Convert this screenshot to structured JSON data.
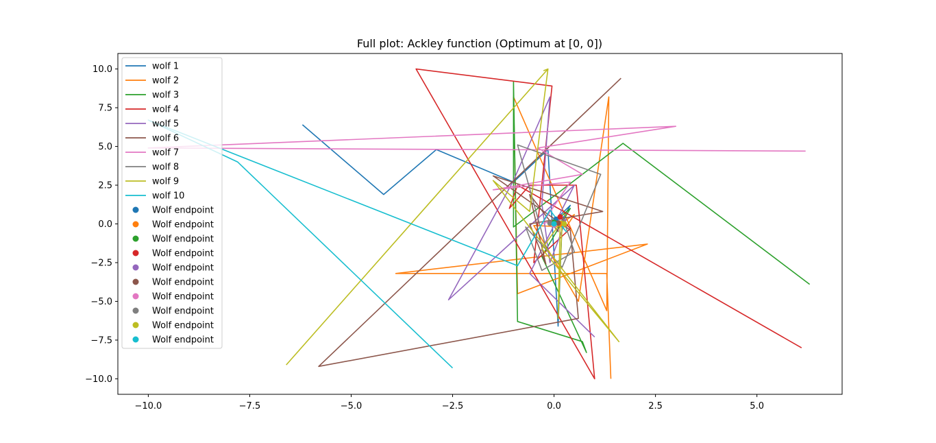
{
  "chart_data": {
    "type": "line",
    "title": "Full plot: Ackley function (Optimum at [0, 0])",
    "xlabel": "",
    "ylabel": "",
    "xlim": [
      -10.75,
      7.1
    ],
    "ylim": [
      -11.0,
      11.0
    ],
    "xticks": [
      -10.0,
      -7.5,
      -5.0,
      -2.5,
      0.0,
      2.5,
      5.0
    ],
    "xtick_labels": [
      "−10.0",
      "−7.5",
      "−5.0",
      "−2.5",
      "0.0",
      "2.5",
      "5.0"
    ],
    "yticks": [
      10.0,
      7.5,
      5.0,
      2.5,
      0.0,
      -2.5,
      -5.0,
      -7.5,
      -10.0
    ],
    "ytick_labels": [
      "10.0",
      "7.5",
      "5.0",
      "2.5",
      "0.0",
      "−2.5",
      "−5.0",
      "−7.5",
      "−10.0"
    ],
    "grid": false,
    "legend_position": "top-left",
    "series": [
      {
        "name": "wolf 1",
        "color": "#1f77b4",
        "points": [
          [
            -6.2,
            6.4
          ],
          [
            -4.2,
            1.9
          ],
          [
            -2.9,
            4.8
          ],
          [
            -1.0,
            2.7
          ],
          [
            -0.15,
            4.8
          ],
          [
            0.1,
            -6.6
          ],
          [
            0.2,
            0.2
          ],
          [
            0.1,
            -0.2
          ],
          [
            0.4,
            1.2
          ],
          [
            0.05,
            0.3
          ]
        ]
      },
      {
        "name": "wolf 2",
        "color": "#ff7f0e",
        "points": [
          [
            1.4,
            -10.0
          ],
          [
            1.3,
            -3.2
          ],
          [
            -3.9,
            -3.2
          ],
          [
            2.3,
            -1.3
          ],
          [
            -0.9,
            -4.5
          ],
          [
            -1.0,
            8.2
          ],
          [
            1.3,
            -5.6
          ],
          [
            1.35,
            8.2
          ],
          [
            0.6,
            -5.0
          ],
          [
            -0.5,
            -0.1
          ],
          [
            0.3,
            -0.2
          ],
          [
            0.5,
            0.6
          ],
          [
            0.15,
            0.0
          ]
        ]
      },
      {
        "name": "wolf 3",
        "color": "#2ca02c",
        "points": [
          [
            6.3,
            -3.9
          ],
          [
            1.7,
            5.2
          ],
          [
            -1.0,
            -0.2
          ],
          [
            -1.0,
            9.2
          ],
          [
            -0.9,
            -6.3
          ],
          [
            0.7,
            -7.6
          ],
          [
            0.8,
            -8.3
          ],
          [
            -0.3,
            -2.1
          ],
          [
            0.4,
            1.0
          ],
          [
            0.0,
            0.1
          ]
        ]
      },
      {
        "name": "wolf 4",
        "color": "#d62728",
        "points": [
          [
            6.1,
            -8.0
          ],
          [
            -0.9,
            2.5
          ],
          [
            -1.1,
            1.0
          ],
          [
            -0.6,
            2.5
          ],
          [
            0.55,
            2.5
          ],
          [
            1.0,
            -10.0
          ],
          [
            -3.4,
            10.0
          ],
          [
            -0.05,
            8.9
          ],
          [
            -0.5,
            -2.5
          ],
          [
            0.4,
            -0.3
          ],
          [
            0.15,
            0.45
          ]
        ]
      },
      {
        "name": "wolf 5",
        "color": "#9467bd",
        "points": [
          [
            1.0,
            -7.3
          ],
          [
            -0.6,
            -3.2
          ],
          [
            0.5,
            2.5
          ],
          [
            -2.6,
            -4.9
          ],
          [
            -1.0,
            2.8
          ],
          [
            -0.1,
            8.2
          ],
          [
            -0.3,
            1.3
          ],
          [
            -0.1,
            -2.5
          ],
          [
            0.3,
            0.3
          ],
          [
            0.0,
            0.0
          ]
        ]
      },
      {
        "name": "wolf 6",
        "color": "#8c564b",
        "points": [
          [
            1.65,
            9.4
          ],
          [
            -5.8,
            -9.2
          ],
          [
            0.6,
            -6.1
          ],
          [
            0.4,
            -0.4
          ],
          [
            -1.5,
            3.1
          ],
          [
            1.2,
            0.8
          ],
          [
            -0.6,
            0.0
          ],
          [
            -0.2,
            -2.6
          ],
          [
            -0.6,
            1.9
          ],
          [
            0.1,
            -0.5
          ],
          [
            0.1,
            0.05
          ]
        ]
      },
      {
        "name": "wolf 7",
        "color": "#e377c2",
        "points": [
          [
            6.2,
            4.7
          ],
          [
            -10.0,
            4.9
          ],
          [
            -8.2,
            5.1
          ],
          [
            3.0,
            6.3
          ],
          [
            -0.4,
            4.9
          ],
          [
            0.7,
            3.2
          ],
          [
            -1.5,
            2.2
          ],
          [
            0.4,
            2.7
          ],
          [
            -0.3,
            0.0
          ],
          [
            0.2,
            0.4
          ],
          [
            0.0,
            -0.05
          ]
        ]
      },
      {
        "name": "wolf 8",
        "color": "#7f7f7f",
        "points": [
          [
            -0.2,
            -1.5
          ],
          [
            -0.9,
            5.1
          ],
          [
            1.15,
            3.2
          ],
          [
            0.2,
            -2.8
          ],
          [
            -0.7,
            -0.2
          ],
          [
            -0.3,
            -3.0
          ],
          [
            0.5,
            -1.8
          ],
          [
            0.2,
            0.5
          ],
          [
            -0.1,
            0.05
          ]
        ]
      },
      {
        "name": "wolf 9",
        "color": "#bcbd22",
        "points": [
          [
            -6.6,
            -9.1
          ],
          [
            -0.15,
            10.0
          ],
          [
            -0.25,
            9.9
          ],
          [
            -0.15,
            10.0
          ],
          [
            -0.6,
            0.8
          ],
          [
            -1.5,
            2.8
          ],
          [
            1.6,
            -7.6
          ],
          [
            -0.3,
            -1.6
          ],
          [
            0.2,
            0.2
          ],
          [
            0.1,
            -6.1
          ],
          [
            0.15,
            0.2
          ],
          [
            0.25,
            0.0
          ]
        ]
      },
      {
        "name": "wolf 10",
        "color": "#17becf",
        "points": [
          [
            -2.5,
            -9.3
          ],
          [
            -7.8,
            4.0
          ],
          [
            -10.0,
            6.7
          ],
          [
            -0.9,
            -2.7
          ],
          [
            -0.1,
            0.9
          ],
          [
            0.3,
            -0.5
          ],
          [
            0.05,
            0.3
          ],
          [
            0.0,
            0.0
          ]
        ]
      }
    ],
    "endpoints": [
      {
        "name": "Wolf endpoint",
        "color": "#1f77b4",
        "x": 0.05,
        "y": 0.3
      },
      {
        "name": "Wolf endpoint",
        "color": "#ff7f0e",
        "x": 0.15,
        "y": 0.0
      },
      {
        "name": "Wolf endpoint",
        "color": "#2ca02c",
        "x": 0.0,
        "y": 0.1
      },
      {
        "name": "Wolf endpoint",
        "color": "#d62728",
        "x": 0.15,
        "y": 0.45
      },
      {
        "name": "Wolf endpoint",
        "color": "#9467bd",
        "x": 0.0,
        "y": 0.0
      },
      {
        "name": "Wolf endpoint",
        "color": "#8c564b",
        "x": 0.1,
        "y": 0.05
      },
      {
        "name": "Wolf endpoint",
        "color": "#e377c2",
        "x": 0.0,
        "y": -0.05
      },
      {
        "name": "Wolf endpoint",
        "color": "#7f7f7f",
        "x": -0.1,
        "y": 0.05
      },
      {
        "name": "Wolf endpoint",
        "color": "#bcbd22",
        "x": 0.25,
        "y": 0.0
      },
      {
        "name": "Wolf endpoint",
        "color": "#17becf",
        "x": 0.0,
        "y": 0.0
      }
    ]
  }
}
